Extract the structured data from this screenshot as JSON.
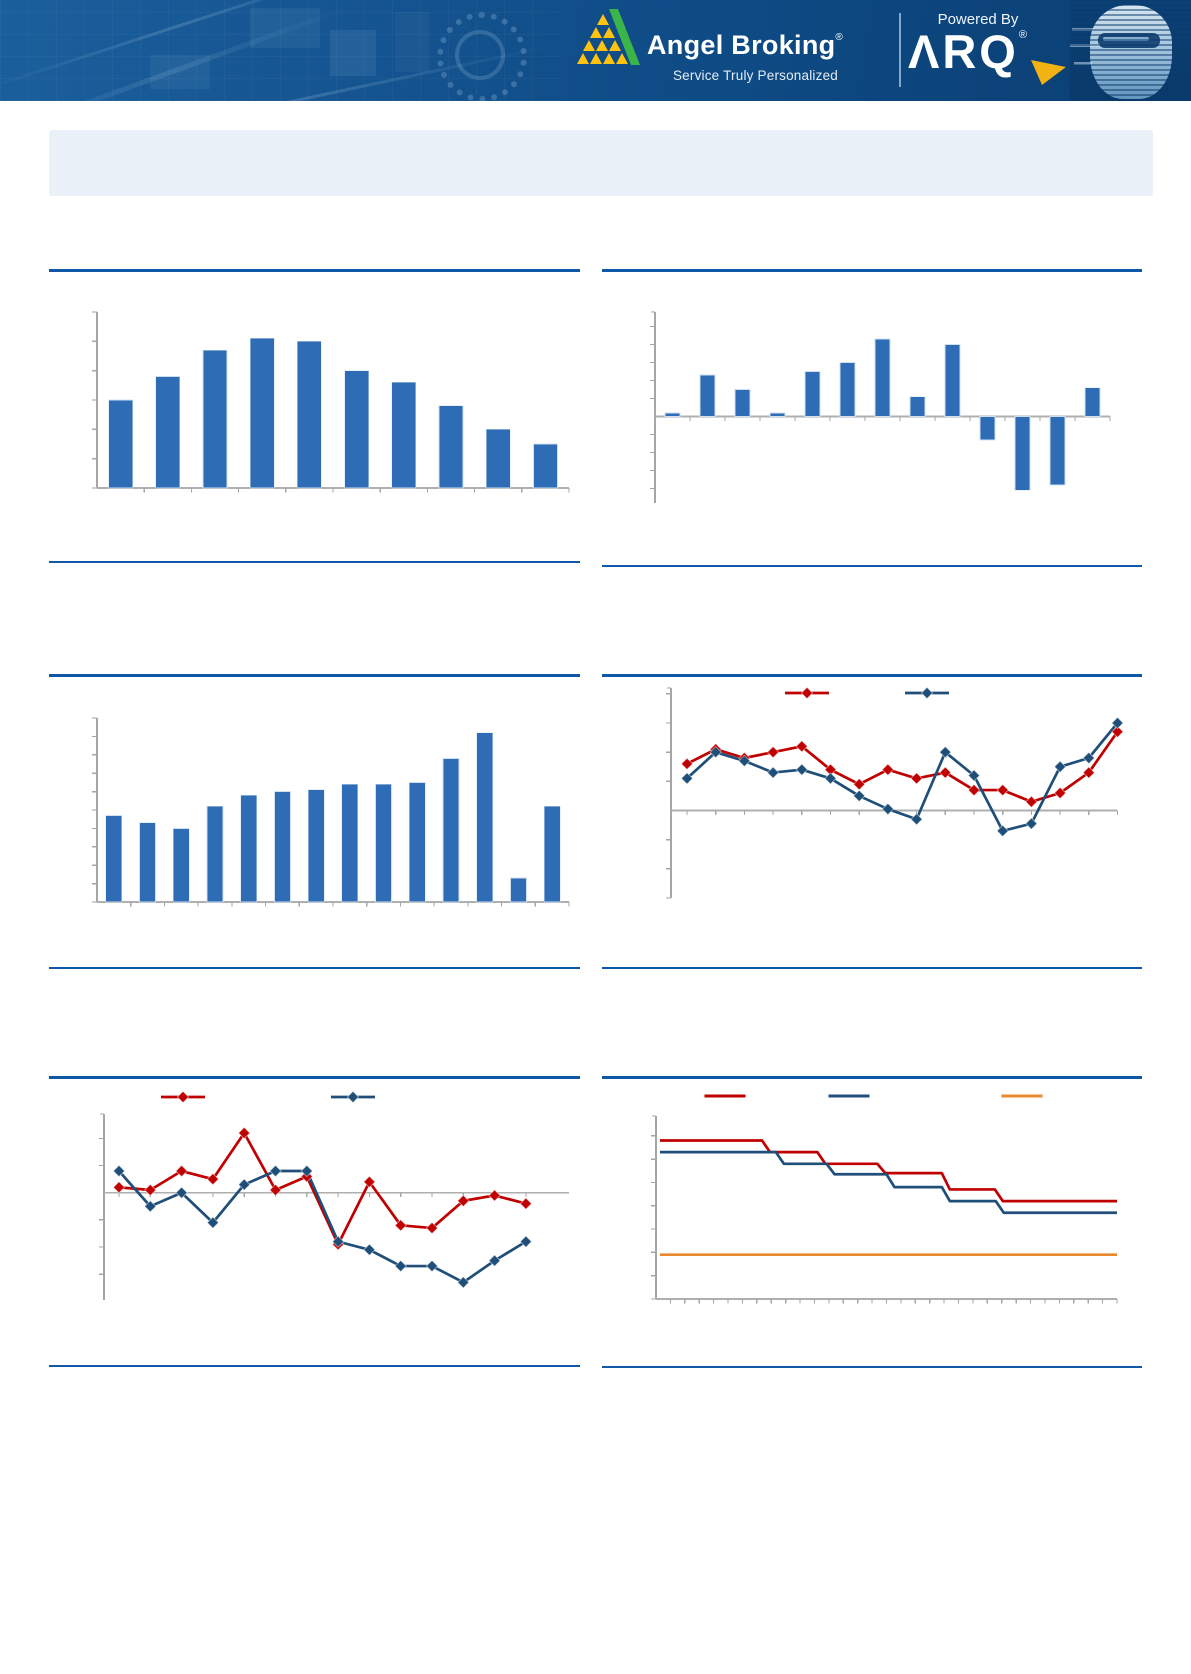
{
  "header": {
    "brand": {
      "name": "Angel Broking",
      "registered": "®",
      "tagline": "Service Truly Personalized"
    },
    "powered_by": {
      "label": "Powered By",
      "product": "ΛRQ",
      "registered": "®"
    }
  },
  "colors": {
    "separator": "#0F58A8",
    "axis": "#A6A6A6",
    "zero_line": "#AFAFAF",
    "bar_blue": "#2E6CB5",
    "line_red": "#C00000",
    "line_dark_blue": "#1F4E79",
    "line_orange": "#E8882F",
    "banner_navy": "#0E4A84",
    "logo_yellow": "#FFC20E",
    "logo_green": "#3BB54A",
    "title_box_bg": "#EAF1F8"
  },
  "chart_data": [
    {
      "name": "exhibit-1",
      "type": "bar",
      "bar_color": "#2E6CB5",
      "values": [
        3.0,
        3.8,
        4.7,
        5.1,
        5.0,
        4.0,
        3.6,
        2.8,
        2.0,
        1.5
      ],
      "ylim": [
        0,
        6
      ],
      "ytick_step": 1,
      "grid": false,
      "legend_position": "none"
    },
    {
      "name": "exhibit-2",
      "type": "bar",
      "bar_color": "#2E6CB5",
      "values": [
        0.2,
        2.3,
        1.5,
        0.2,
        2.5,
        3.0,
        4.3,
        1.1,
        4.0,
        -1.3,
        -4.1,
        -3.8,
        1.6
      ],
      "ylim": [
        -4.8,
        5.8
      ],
      "ytick_step": 1,
      "grid": false,
      "legend_position": "none"
    },
    {
      "name": "exhibit-3",
      "type": "bar",
      "bar_color": "#2E6CB5",
      "values": [
        4.7,
        4.3,
        4.0,
        5.2,
        5.8,
        6.0,
        6.1,
        6.4,
        6.4,
        6.5,
        7.8,
        9.2,
        1.3,
        5.2
      ],
      "ylim": [
        0,
        10
      ],
      "ytick_step": 1,
      "grid": false,
      "legend_position": "none"
    },
    {
      "name": "exhibit-4",
      "type": "line",
      "series": [
        {
          "name": "series-red",
          "color": "#C00000",
          "marker": "diamond",
          "values": [
            1.6,
            2.1,
            1.8,
            2.0,
            2.2,
            1.4,
            0.9,
            1.4,
            1.1,
            1.3,
            0.7,
            0.7,
            0.3,
            0.6,
            1.3,
            2.7
          ]
        },
        {
          "name": "series-dark-blue",
          "color": "#1F4E79",
          "marker": "diamond",
          "values": [
            1.1,
            2.0,
            1.7,
            1.3,
            1.4,
            1.1,
            0.5,
            0.05,
            -0.3,
            2.0,
            1.2,
            -0.7,
            -0.45,
            1.5,
            1.8,
            3.0
          ]
        }
      ],
      "ylim": [
        -3.0,
        4.2
      ],
      "ytick_step": 1,
      "grid": false,
      "legend_position": "top"
    },
    {
      "name": "exhibit-5",
      "type": "line",
      "series": [
        {
          "name": "series-red",
          "color": "#C00000",
          "marker": "diamond",
          "values": [
            0.2,
            0.1,
            0.8,
            0.5,
            2.2,
            0.1,
            0.6,
            -1.9,
            0.4,
            -1.2,
            -1.3,
            -0.3,
            -0.1,
            -0.4
          ]
        },
        {
          "name": "series-dark-blue",
          "color": "#1F4E79",
          "marker": "diamond",
          "values": [
            0.8,
            -0.5,
            0.0,
            -1.1,
            0.3,
            0.8,
            0.8,
            -1.8,
            -2.1,
            -2.7,
            -2.7,
            -3.3,
            -2.5,
            -1.8
          ]
        }
      ],
      "ylim": [
        -3.95,
        2.9
      ],
      "ytick_step": 1,
      "grid": false,
      "legend_position": "top"
    },
    {
      "name": "exhibit-6",
      "type": "step",
      "series": [
        {
          "name": "step-red",
          "color": "#C00000",
          "levels": [
            6.8,
            6.3,
            5.8,
            5.4,
            4.7,
            4.2
          ],
          "breaks": [
            0.23,
            0.35,
            0.48,
            0.62,
            0.735
          ]
        },
        {
          "name": "step-dark-blue",
          "color": "#1F4E79",
          "levels": [
            6.3,
            5.8,
            5.35,
            4.8,
            4.2,
            3.7
          ],
          "breaks": [
            0.26,
            0.37,
            0.5,
            0.62,
            0.737
          ]
        },
        {
          "name": "flat-orange",
          "color": "#E8882F",
          "levels": [
            1.9
          ],
          "breaks": []
        }
      ],
      "ylim": [
        0,
        7.85
      ],
      "ytick_step": 1,
      "grid": false,
      "legend_position": "top"
    }
  ]
}
